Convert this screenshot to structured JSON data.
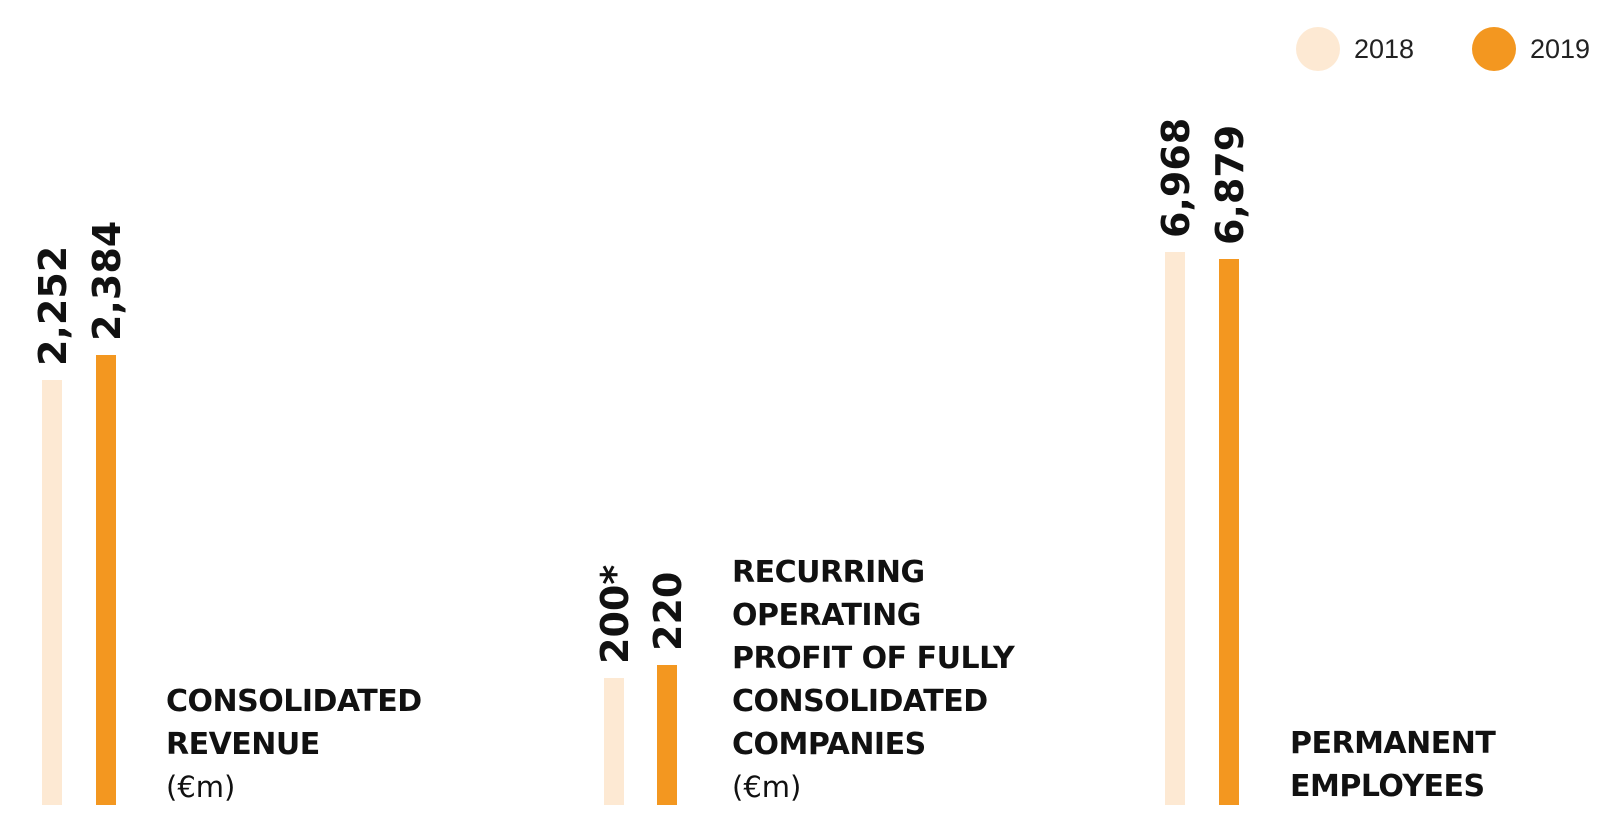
{
  "legend": {
    "items": [
      {
        "label": "2018",
        "color": "#fde9d3"
      },
      {
        "label": "2019",
        "color": "#f39720"
      }
    ]
  },
  "chart_data": [
    {
      "type": "bar",
      "title": "CONSOLIDATED\nREVENUE",
      "unit": "(€m)",
      "categories": [
        "2018",
        "2019"
      ],
      "values": [
        2252,
        2384
      ],
      "value_labels": [
        "2,252",
        "2,384"
      ]
    },
    {
      "type": "bar",
      "title": "RECURRING\nOPERATING\nPROFIT OF FULLY\nCONSOLIDATED\nCOMPANIES",
      "unit": "(€m)",
      "categories": [
        "2018",
        "2019"
      ],
      "values": [
        200,
        220
      ],
      "value_labels": [
        "200*",
        "220"
      ]
    },
    {
      "type": "bar",
      "title": "PERMANENT\nEMPLOYEES",
      "unit": "",
      "categories": [
        "2018",
        "2019"
      ],
      "values": [
        6968,
        6879
      ],
      "value_labels": [
        "6,968",
        "6,879"
      ]
    }
  ]
}
